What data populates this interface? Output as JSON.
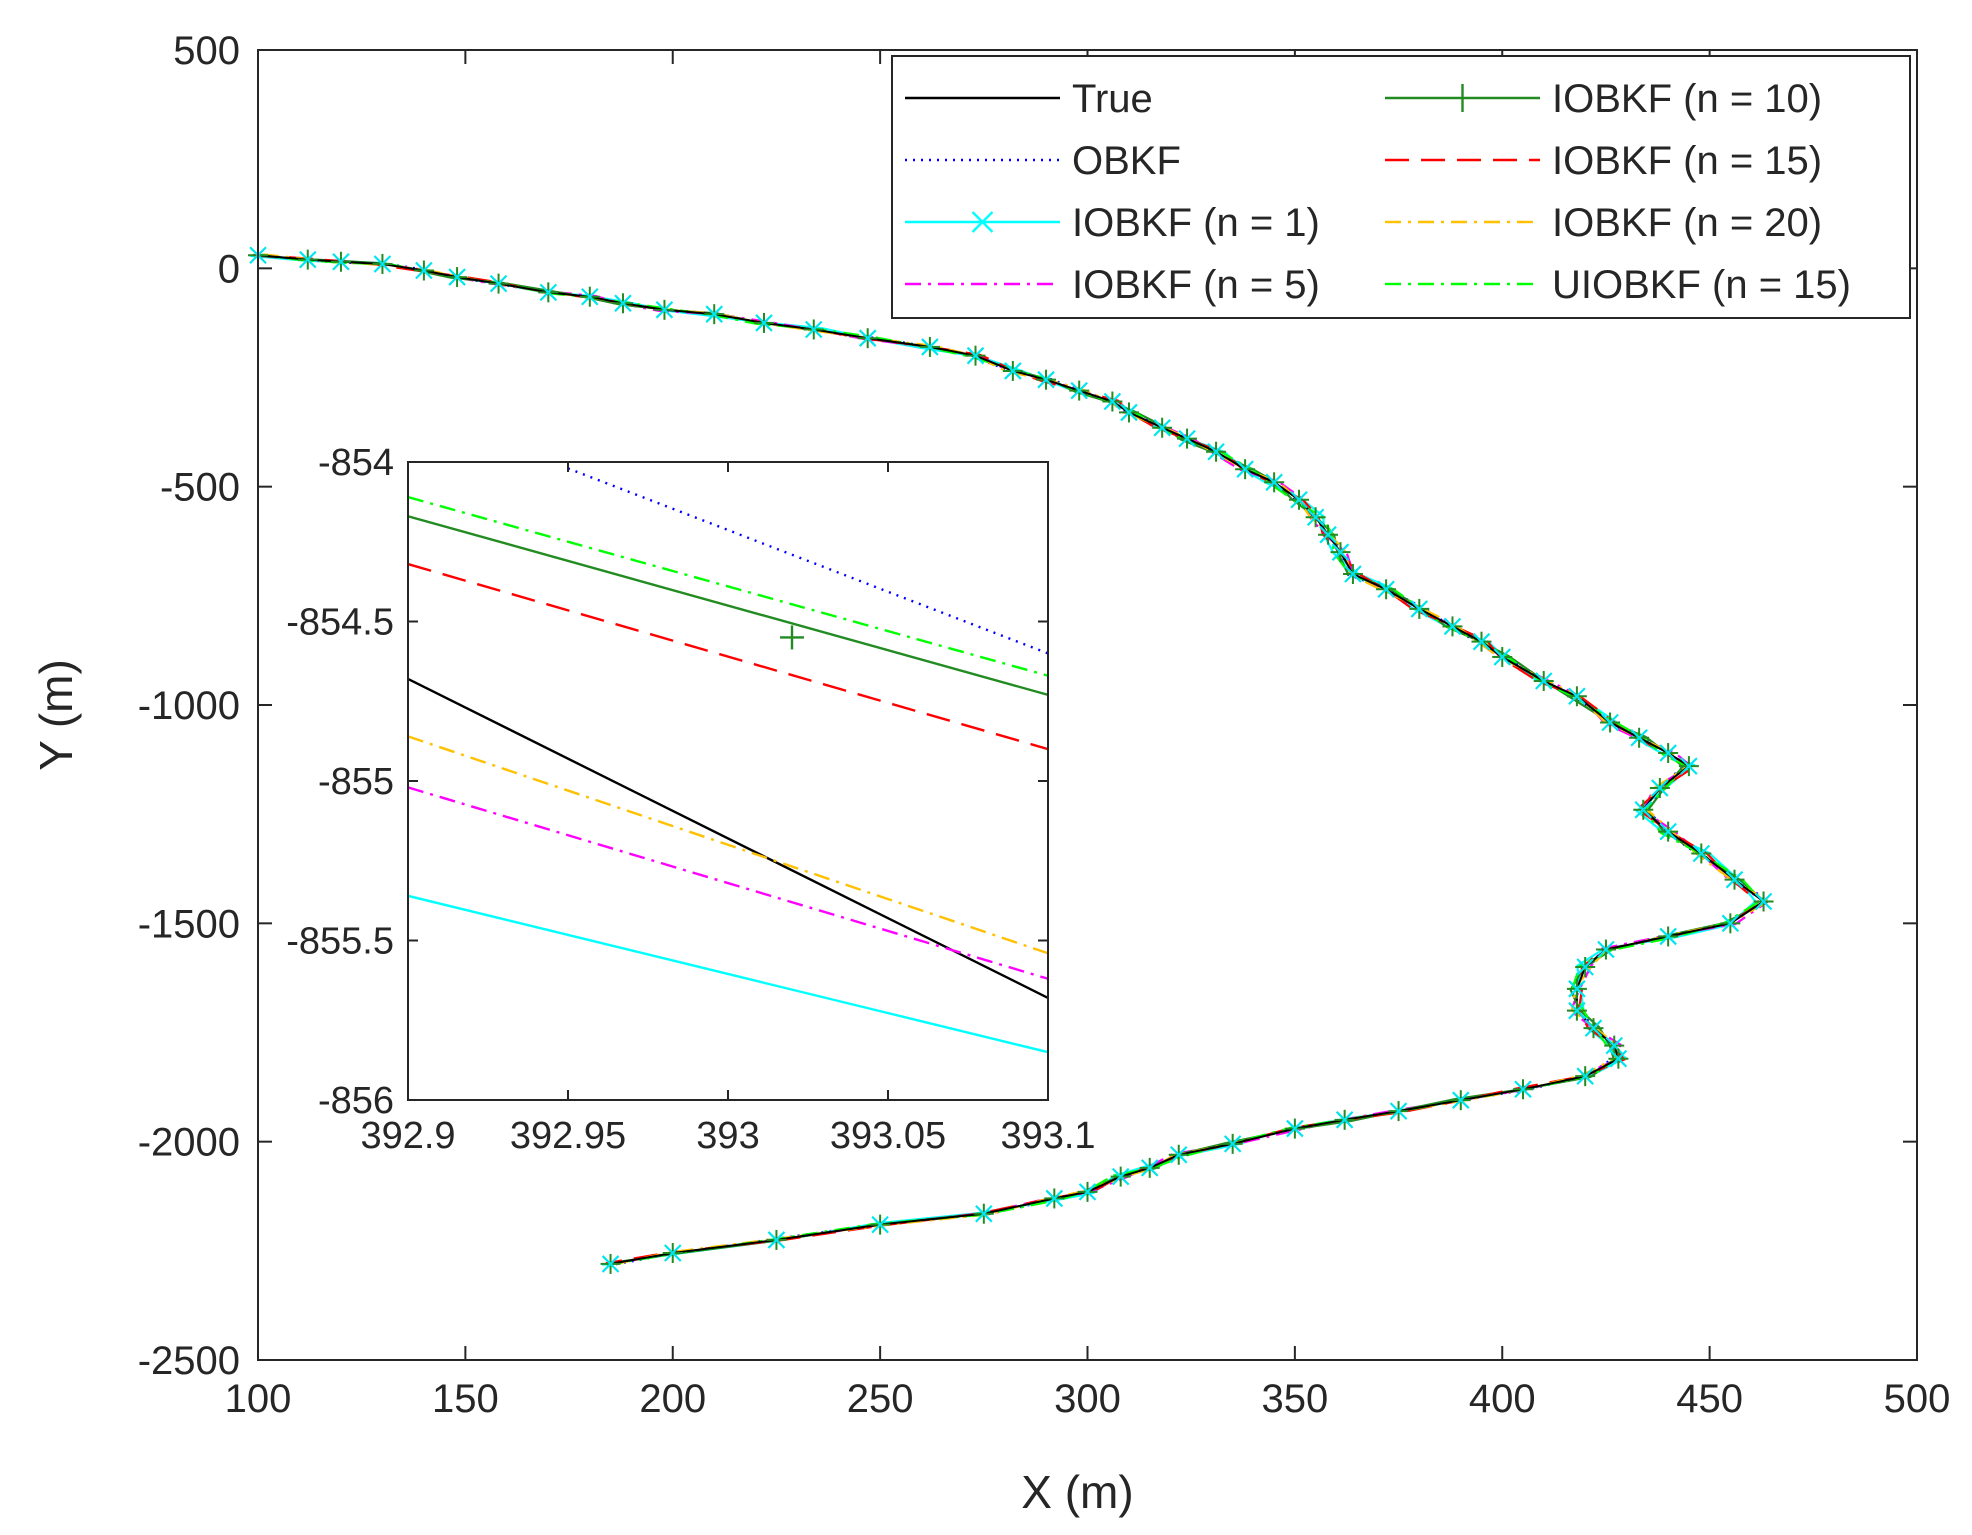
{
  "chart_data": [
    {
      "type": "line",
      "role": "main",
      "xlabel": "X (m)",
      "ylabel": "Y (m)",
      "xlim": [
        100,
        500
      ],
      "ylim": [
        -2500,
        500
      ],
      "xticks": [
        100,
        150,
        200,
        250,
        300,
        350,
        400,
        450,
        500
      ],
      "yticks": [
        500,
        0,
        -500,
        -1000,
        -1500,
        -2000,
        -2500
      ],
      "xtick_labels": [
        "100",
        "150",
        "200",
        "250",
        "300",
        "350",
        "400",
        "450",
        "500"
      ],
      "ytick_labels": [
        "500",
        "0",
        "-500",
        "-1000",
        "-1500",
        "-2000",
        "-2500"
      ],
      "grid": false,
      "legend_location": "top-right",
      "trajectory": [
        [
          100,
          30
        ],
        [
          112,
          20
        ],
        [
          120,
          15
        ],
        [
          130,
          10
        ],
        [
          140,
          -5
        ],
        [
          148,
          -20
        ],
        [
          158,
          -35
        ],
        [
          170,
          -55
        ],
        [
          180,
          -65
        ],
        [
          188,
          -80
        ],
        [
          198,
          -95
        ],
        [
          210,
          -105
        ],
        [
          222,
          -125
        ],
        [
          234,
          -140
        ],
        [
          247,
          -160
        ],
        [
          262,
          -180
        ],
        [
          273,
          -200
        ],
        [
          282,
          -235
        ],
        [
          290,
          -255
        ],
        [
          298,
          -280
        ],
        [
          306,
          -305
        ],
        [
          310,
          -330
        ],
        [
          318,
          -365
        ],
        [
          324,
          -390
        ],
        [
          331,
          -420
        ],
        [
          338,
          -460
        ],
        [
          345,
          -490
        ],
        [
          351,
          -530
        ],
        [
          355,
          -570
        ],
        [
          358,
          -610
        ],
        [
          361,
          -650
        ],
        [
          364,
          -700
        ],
        [
          372,
          -735
        ],
        [
          380,
          -780
        ],
        [
          388,
          -820
        ],
        [
          395,
          -855
        ],
        [
          400,
          -890
        ],
        [
          410,
          -945
        ],
        [
          418,
          -980
        ],
        [
          426,
          -1040
        ],
        [
          433,
          -1075
        ],
        [
          440,
          -1110
        ],
        [
          445,
          -1140
        ],
        [
          438,
          -1190
        ],
        [
          434,
          -1240
        ],
        [
          440,
          -1290
        ],
        [
          448,
          -1340
        ],
        [
          456,
          -1400
        ],
        [
          463,
          -1450
        ],
        [
          455,
          -1500
        ],
        [
          440,
          -1530
        ],
        [
          425,
          -1560
        ],
        [
          420,
          -1600
        ],
        [
          418,
          -1650
        ],
        [
          418,
          -1700
        ],
        [
          422,
          -1740
        ],
        [
          427,
          -1780
        ],
        [
          428,
          -1810
        ],
        [
          420,
          -1850
        ],
        [
          405,
          -1880
        ],
        [
          390,
          -1905
        ],
        [
          375,
          -1930
        ],
        [
          362,
          -1950
        ],
        [
          350,
          -1970
        ],
        [
          335,
          -2005
        ],
        [
          322,
          -2030
        ],
        [
          315,
          -2060
        ],
        [
          308,
          -2080
        ],
        [
          300,
          -2115
        ],
        [
          292,
          -2130
        ],
        [
          275,
          -2165
        ],
        [
          250,
          -2190
        ],
        [
          225,
          -2225
        ],
        [
          200,
          -2255
        ],
        [
          185,
          -2280
        ]
      ],
      "series": [
        {
          "name": "True",
          "color": "#000000",
          "dash": "solid",
          "marker": "none",
          "noise": 0
        },
        {
          "name": "OBKF",
          "color": "#0000ff",
          "dash": "dotted",
          "marker": "none",
          "noise": 1.2
        },
        {
          "name": "IOBKF (n = 1)",
          "color": "#00ffff",
          "dash": "solid",
          "marker": "x",
          "noise": 2.0
        },
        {
          "name": "IOBKF (n = 5)",
          "color": "#ff00ff",
          "dash": "dashdot",
          "marker": "none",
          "noise": 1.5
        },
        {
          "name": "IOBKF (n = 10)",
          "color": "#228b22",
          "dash": "solid",
          "marker": "plus",
          "noise": 1.6
        },
        {
          "name": "IOBKF (n = 15)",
          "color": "#ff0000",
          "dash": "dashed",
          "marker": "none",
          "noise": 1.4
        },
        {
          "name": "IOBKF (n = 20)",
          "color": "#ffc000",
          "dash": "dashdot",
          "marker": "none",
          "noise": 1.3
        },
        {
          "name": "UIOBKF (n = 15)",
          "color": "#00ff00",
          "dash": "dashdot",
          "marker": "none",
          "noise": 1.8
        }
      ]
    },
    {
      "type": "line",
      "role": "inset",
      "xlim": [
        392.9,
        393.1
      ],
      "ylim": [
        -856,
        -854
      ],
      "xticks": [
        392.9,
        392.95,
        393,
        393.05,
        393.1
      ],
      "yticks": [
        -854,
        -854.5,
        -855,
        -855.5,
        -856
      ],
      "xtick_labels": [
        "392.9",
        "392.95",
        "393",
        "393.05",
        "393.1"
      ],
      "ytick_labels": [
        "-854",
        "-854.5",
        "-855",
        "-855.5",
        "-856"
      ],
      "series": [
        {
          "name": "True",
          "points": [
            [
              392.9,
              -854.68
            ],
            [
              393.1,
              -855.68
            ]
          ]
        },
        {
          "name": "OBKF",
          "points": [
            [
              392.95,
              -854.02
            ],
            [
              393.1,
              -854.6
            ]
          ]
        },
        {
          "name": "IOBKF (n = 1)",
          "points": [
            [
              392.9,
              -855.36
            ],
            [
              393.1,
              -855.85
            ]
          ]
        },
        {
          "name": "IOBKF (n = 5)",
          "points": [
            [
              392.9,
              -855.02
            ],
            [
              393.1,
              -855.62
            ]
          ]
        },
        {
          "name": "IOBKF (n = 10)",
          "points": [
            [
              392.9,
              -854.17
            ],
            [
              393.1,
              -854.73
            ]
          ]
        },
        {
          "name": "IOBKF (n = 15)",
          "points": [
            [
              392.9,
              -854.32
            ],
            [
              393.1,
              -854.9
            ]
          ]
        },
        {
          "name": "IOBKF (n = 20)",
          "points": [
            [
              392.9,
              -854.86
            ],
            [
              393.1,
              -855.54
            ]
          ]
        },
        {
          "name": "UIOBKF (n = 15)",
          "points": [
            [
              392.9,
              -854.11
            ],
            [
              393.1,
              -854.67
            ]
          ]
        }
      ],
      "markers": [
        {
          "series": "IOBKF (n = 10)",
          "x": 393.02,
          "y": -854.55
        }
      ]
    }
  ]
}
